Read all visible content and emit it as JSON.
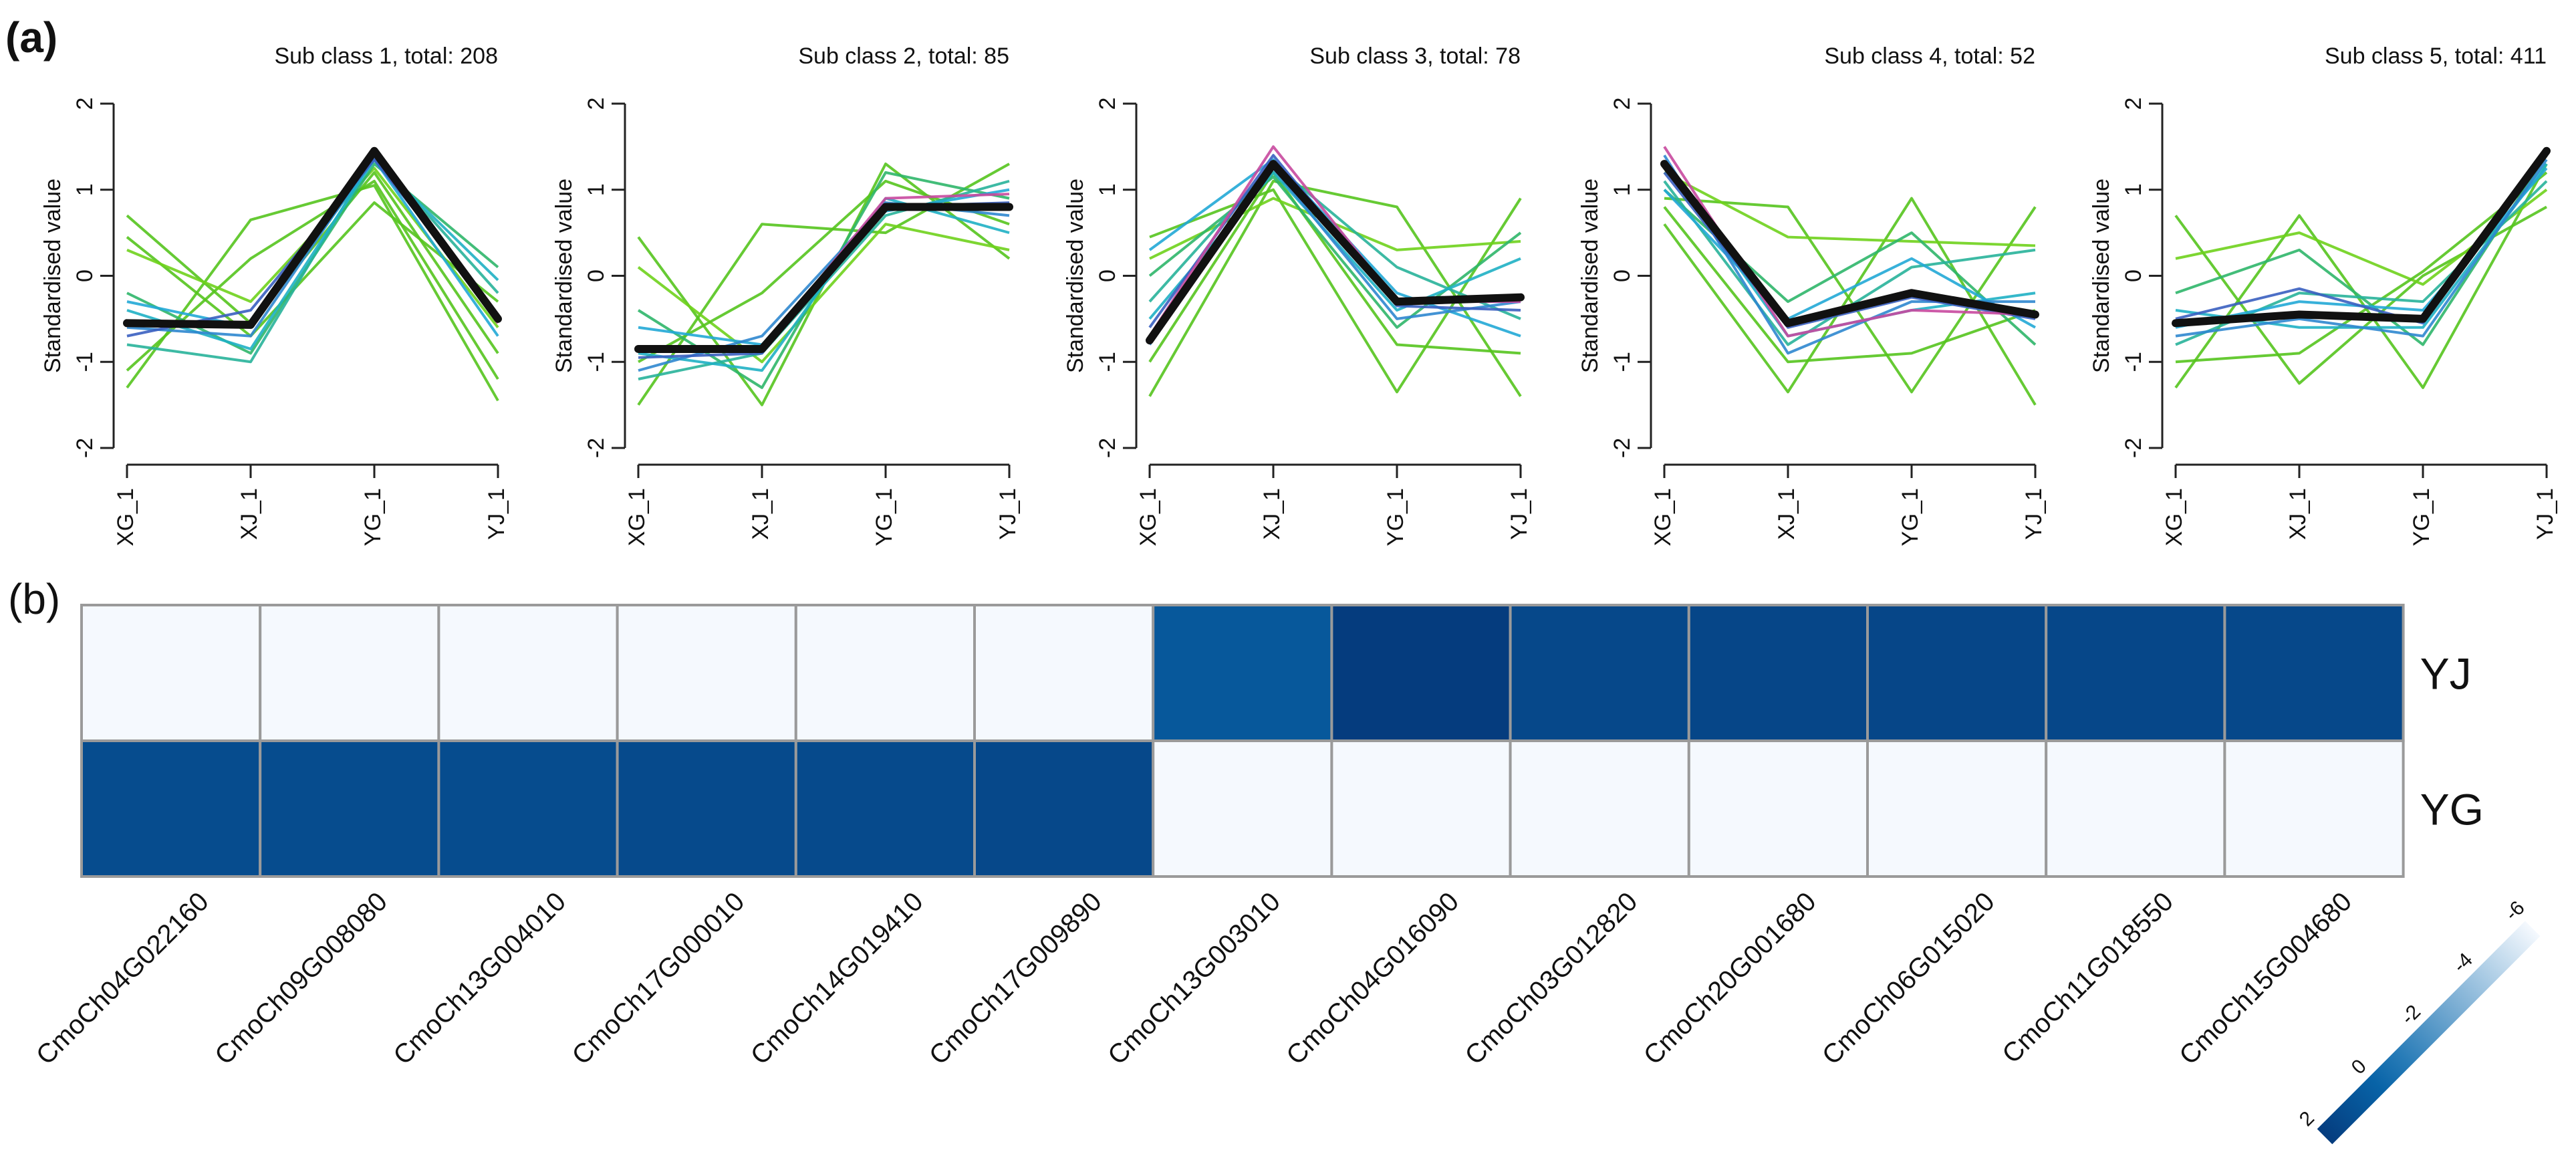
{
  "panels": {
    "a_label": "(a)",
    "b_label": "(b)"
  },
  "chart_data": [
    {
      "type": "line",
      "title": "Sub class 1, total: 208",
      "ylabel": "Standardised value",
      "categories": [
        "XG_1",
        "XJ_1",
        "YG_1",
        "YJ_1"
      ],
      "ylim": [
        -2,
        2
      ],
      "yticks": [
        "-2",
        "-1",
        "0",
        "1",
        "2"
      ],
      "mean": [
        -0.55,
        -0.57,
        1.45,
        -0.5
      ],
      "series": [
        {
          "color": "#55c41e",
          "values": [
            0.7,
            -0.55,
            1.2,
            -0.9
          ]
        },
        {
          "color": "#55c41e",
          "values": [
            -1.3,
            0.65,
            1.05,
            -1.45
          ]
        },
        {
          "color": "#55c41e",
          "values": [
            0.45,
            -0.7,
            0.85,
            -0.3
          ]
        },
        {
          "color": "#55c41e",
          "values": [
            -1.1,
            0.2,
            1.1,
            -1.2
          ]
        },
        {
          "color": "#6fd11c",
          "values": [
            0.3,
            -0.3,
            1.25,
            -0.6
          ]
        },
        {
          "color": "#2fb66a",
          "values": [
            -0.2,
            -0.9,
            1.3,
            0.1
          ]
        },
        {
          "color": "#28b29a",
          "values": [
            -0.8,
            -1.0,
            1.4,
            -0.2
          ]
        },
        {
          "color": "#1fb0c4",
          "values": [
            -0.4,
            -0.85,
            1.35,
            -0.05
          ]
        },
        {
          "color": "#22a9d6",
          "values": [
            -0.3,
            -0.6,
            1.35,
            -0.7
          ]
        },
        {
          "color": "#2f87cf",
          "values": [
            -0.6,
            -0.7,
            1.4,
            -0.5
          ]
        },
        {
          "color": "#3a5fc0",
          "values": [
            -0.7,
            -0.4,
            1.35,
            -0.45
          ]
        },
        {
          "color": "#c8499f",
          "values": [
            -0.58,
            -0.55,
            1.45,
            -0.55
          ]
        }
      ]
    },
    {
      "type": "line",
      "title": "Sub class 2, total: 85",
      "ylabel": "Standardised value",
      "categories": [
        "XG_1",
        "XJ_1",
        "YG_1",
        "YJ_1"
      ],
      "ylim": [
        -2,
        2
      ],
      "yticks": [
        "-2",
        "-1",
        "0",
        "1",
        "2"
      ],
      "mean": [
        -0.85,
        -0.85,
        0.8,
        0.8
      ],
      "series": [
        {
          "color": "#55c41e",
          "values": [
            0.45,
            -1.5,
            1.3,
            0.2
          ]
        },
        {
          "color": "#55c41e",
          "values": [
            -1.5,
            0.6,
            0.5,
            1.3
          ]
        },
        {
          "color": "#6fd11c",
          "values": [
            0.1,
            -1.0,
            0.6,
            0.3
          ]
        },
        {
          "color": "#55c41e",
          "values": [
            -1.0,
            -0.2,
            1.1,
            0.6
          ]
        },
        {
          "color": "#2fb66a",
          "values": [
            -0.4,
            -1.3,
            1.2,
            0.9
          ]
        },
        {
          "color": "#28b29a",
          "values": [
            -1.2,
            -0.9,
            0.7,
            1.1
          ]
        },
        {
          "color": "#1fb0c4",
          "values": [
            -0.9,
            -1.1,
            0.9,
            0.5
          ]
        },
        {
          "color": "#22a9d6",
          "values": [
            -0.6,
            -0.8,
            0.75,
            1.0
          ]
        },
        {
          "color": "#2f87cf",
          "values": [
            -1.1,
            -0.7,
            0.85,
            0.7
          ]
        },
        {
          "color": "#3a5fc0",
          "values": [
            -0.95,
            -0.9,
            0.8,
            0.85
          ]
        },
        {
          "color": "#c8499f",
          "values": [
            -0.85,
            -0.85,
            0.9,
            0.95
          ]
        }
      ]
    },
    {
      "type": "line",
      "title": "Sub class 3, total: 78",
      "ylabel": "Standardised value",
      "categories": [
        "XG_1",
        "XJ_1",
        "YG_1",
        "YJ_1"
      ],
      "ylim": [
        -2,
        2
      ],
      "yticks": [
        "-2",
        "-1",
        "0",
        "1",
        "2"
      ],
      "mean": [
        -0.75,
        1.3,
        -0.3,
        -0.25
      ],
      "series": [
        {
          "color": "#55c41e",
          "values": [
            0.45,
            1.0,
            -1.35,
            0.9
          ]
        },
        {
          "color": "#55c41e",
          "values": [
            -1.4,
            1.1,
            0.8,
            -1.4
          ]
        },
        {
          "color": "#6fd11c",
          "values": [
            0.2,
            0.9,
            0.3,
            0.4
          ]
        },
        {
          "color": "#55c41e",
          "values": [
            -1.0,
            1.2,
            -0.8,
            -0.9
          ]
        },
        {
          "color": "#2fb66a",
          "values": [
            0.0,
            1.15,
            -0.6,
            0.5
          ]
        },
        {
          "color": "#28b29a",
          "values": [
            -0.3,
            1.3,
            0.1,
            -0.5
          ]
        },
        {
          "color": "#1fb0c4",
          "values": [
            -0.5,
            1.2,
            -0.4,
            0.2
          ]
        },
        {
          "color": "#22a9d6",
          "values": [
            0.3,
            1.35,
            -0.2,
            -0.7
          ]
        },
        {
          "color": "#2f87cf",
          "values": [
            -0.8,
            1.25,
            -0.5,
            -0.3
          ]
        },
        {
          "color": "#3a5fc0",
          "values": [
            -0.6,
            1.4,
            -0.35,
            -0.4
          ]
        },
        {
          "color": "#c8499f",
          "values": [
            -0.7,
            1.5,
            -0.3,
            -0.3
          ]
        }
      ]
    },
    {
      "type": "line",
      "title": "Sub class 4, total: 52",
      "ylabel": "Standardised value",
      "categories": [
        "XG_1",
        "XJ_1",
        "YG_1",
        "YJ_1"
      ],
      "ylim": [
        -2,
        2
      ],
      "yticks": [
        "-2",
        "-1",
        "0",
        "1",
        "2"
      ],
      "mean": [
        1.3,
        -0.55,
        -0.2,
        -0.45
      ],
      "series": [
        {
          "color": "#55c41e",
          "values": [
            0.9,
            0.8,
            -1.35,
            0.8
          ]
        },
        {
          "color": "#55c41e",
          "values": [
            0.6,
            -1.35,
            0.9,
            -1.5
          ]
        },
        {
          "color": "#6fd11c",
          "values": [
            1.2,
            0.45,
            0.4,
            0.35
          ]
        },
        {
          "color": "#55c41e",
          "values": [
            0.8,
            -1.0,
            -0.9,
            -0.4
          ]
        },
        {
          "color": "#2fb66a",
          "values": [
            1.0,
            -0.3,
            0.5,
            -0.8
          ]
        },
        {
          "color": "#28b29a",
          "values": [
            1.1,
            -0.8,
            0.1,
            0.3
          ]
        },
        {
          "color": "#1fb0c4",
          "values": [
            1.3,
            -0.7,
            -0.4,
            -0.2
          ]
        },
        {
          "color": "#22a9d6",
          "values": [
            1.0,
            -0.5,
            0.2,
            -0.6
          ]
        },
        {
          "color": "#2f87cf",
          "values": [
            1.4,
            -0.9,
            -0.3,
            -0.3
          ]
        },
        {
          "color": "#3a5fc0",
          "values": [
            1.2,
            -0.6,
            -0.25,
            -0.5
          ]
        },
        {
          "color": "#c8499f",
          "values": [
            1.5,
            -0.7,
            -0.4,
            -0.45
          ]
        }
      ]
    },
    {
      "type": "line",
      "title": "Sub class 5, total: 411",
      "ylabel": "Standardised value",
      "categories": [
        "XG_1",
        "XJ_1",
        "YG_1",
        "YJ_1"
      ],
      "ylim": [
        -2,
        2
      ],
      "yticks": [
        "-2",
        "-1",
        "0",
        "1",
        "2"
      ],
      "mean": [
        -0.55,
        -0.45,
        -0.5,
        1.45
      ],
      "series": [
        {
          "color": "#55c41e",
          "values": [
            0.7,
            -1.25,
            0.0,
            0.8
          ]
        },
        {
          "color": "#55c41e",
          "values": [
            -1.3,
            0.7,
            -1.3,
            1.3
          ]
        },
        {
          "color": "#6fd11c",
          "values": [
            0.2,
            0.5,
            -0.1,
            1.0
          ]
        },
        {
          "color": "#55c41e",
          "values": [
            -1.0,
            -0.9,
            0.05,
            1.2
          ]
        },
        {
          "color": "#2fb66a",
          "values": [
            -0.2,
            0.3,
            -0.8,
            1.4
          ]
        },
        {
          "color": "#28b29a",
          "values": [
            -0.8,
            -0.2,
            -0.3,
            1.1
          ]
        },
        {
          "color": "#1fb0c4",
          "values": [
            -0.4,
            -0.6,
            -0.6,
            1.3
          ]
        },
        {
          "color": "#22a9d6",
          "values": [
            -0.6,
            -0.3,
            -0.4,
            1.25
          ]
        },
        {
          "color": "#2f87cf",
          "values": [
            -0.7,
            -0.5,
            -0.7,
            1.35
          ]
        },
        {
          "color": "#3a5fc0",
          "values": [
            -0.5,
            -0.15,
            -0.55,
            1.4
          ]
        },
        {
          "color": "#c8499f",
          "values": [
            -0.55,
            -0.45,
            -0.5,
            1.45
          ]
        }
      ]
    },
    {
      "type": "heatmap",
      "rows": [
        "YJ",
        "YG"
      ],
      "columns": [
        "CmoCh04G022160",
        "CmoCh09G008080",
        "CmoCh13G004010",
        "CmoCh17G000010",
        "CmoCh14G019410",
        "CmoCh17G009890",
        "CmoCh13G003010",
        "CmoCh04G016090",
        "CmoCh03G012820",
        "CmoCh20G001680",
        "CmoCh06G015020",
        "CmoCh11G018550",
        "CmoCh15G004680"
      ],
      "values": [
        [
          -6,
          -6,
          -6,
          -6,
          -6,
          -6,
          0.6,
          2.0,
          1.4,
          1.5,
          1.5,
          1.45,
          1.4
        ],
        [
          1.2,
          1.2,
          1.2,
          1.3,
          1.3,
          1.4,
          -6,
          -6,
          -6,
          -6,
          -6,
          -6,
          -6
        ]
      ],
      "colorbar": {
        "range": [
          -6,
          2
        ],
        "ticks": [
          "2",
          "0",
          "-2",
          "-4",
          "-6"
        ],
        "low_color": "#f5f9fe",
        "high_color": "#053c7e"
      }
    }
  ]
}
